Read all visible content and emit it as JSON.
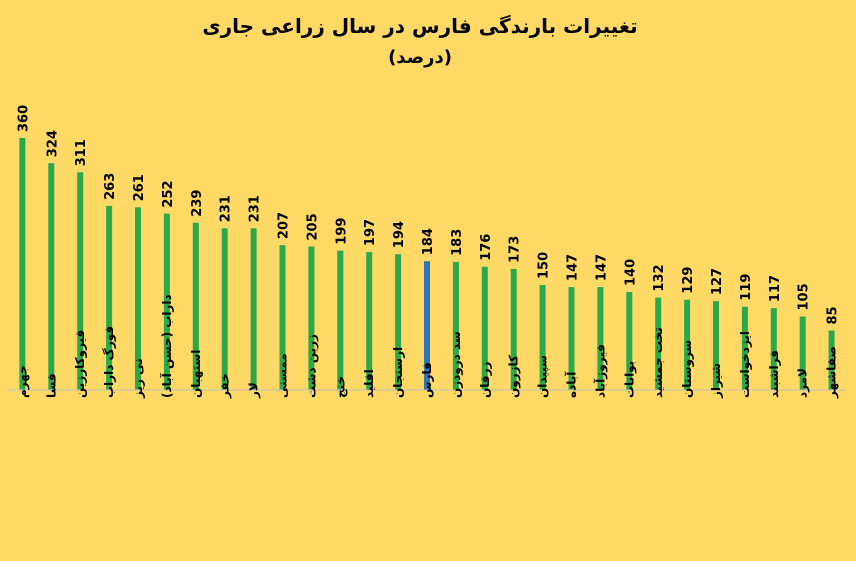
{
  "chart_data": {
    "type": "bar",
    "title": "تغییرات بارندگی فارس در سال زراعی جاری",
    "subtitle": "(درصد)",
    "xlabel": "",
    "ylabel": "",
    "categories": [
      "جهرم",
      "فسا",
      "قیروکارزین",
      "فورگ داراب",
      "نی ریز",
      "داراب (حسن آباد)",
      "استهبان",
      "خفر",
      "لار",
      "ممسنی",
      "زرین دشت",
      "خنج",
      "اقلید",
      "ارسنجان",
      "فارس",
      "سد درودزن",
      "زرقان",
      "کازرون",
      "سپیدان",
      "آباده",
      "فیروزآباد",
      "بوانات",
      "تخت جمشید",
      "سروستان",
      "شیراز",
      "ایزدخواست",
      "فراشبند",
      "لامرد",
      "صفاشهر"
    ],
    "values": [
      360,
      324,
      311,
      263,
      261,
      252,
      239,
      231,
      231,
      207,
      205,
      199,
      197,
      194,
      184,
      183,
      176,
      173,
      150,
      147,
      147,
      140,
      132,
      129,
      127,
      119,
      117,
      105,
      85
    ],
    "ylim": [
      0,
      400
    ],
    "grid": false,
    "legend": "none",
    "highlight_category": "فارس",
    "colors": {
      "bar": "#2aa84a",
      "highlight": "#2e75b6",
      "background": "#ffd966"
    }
  }
}
